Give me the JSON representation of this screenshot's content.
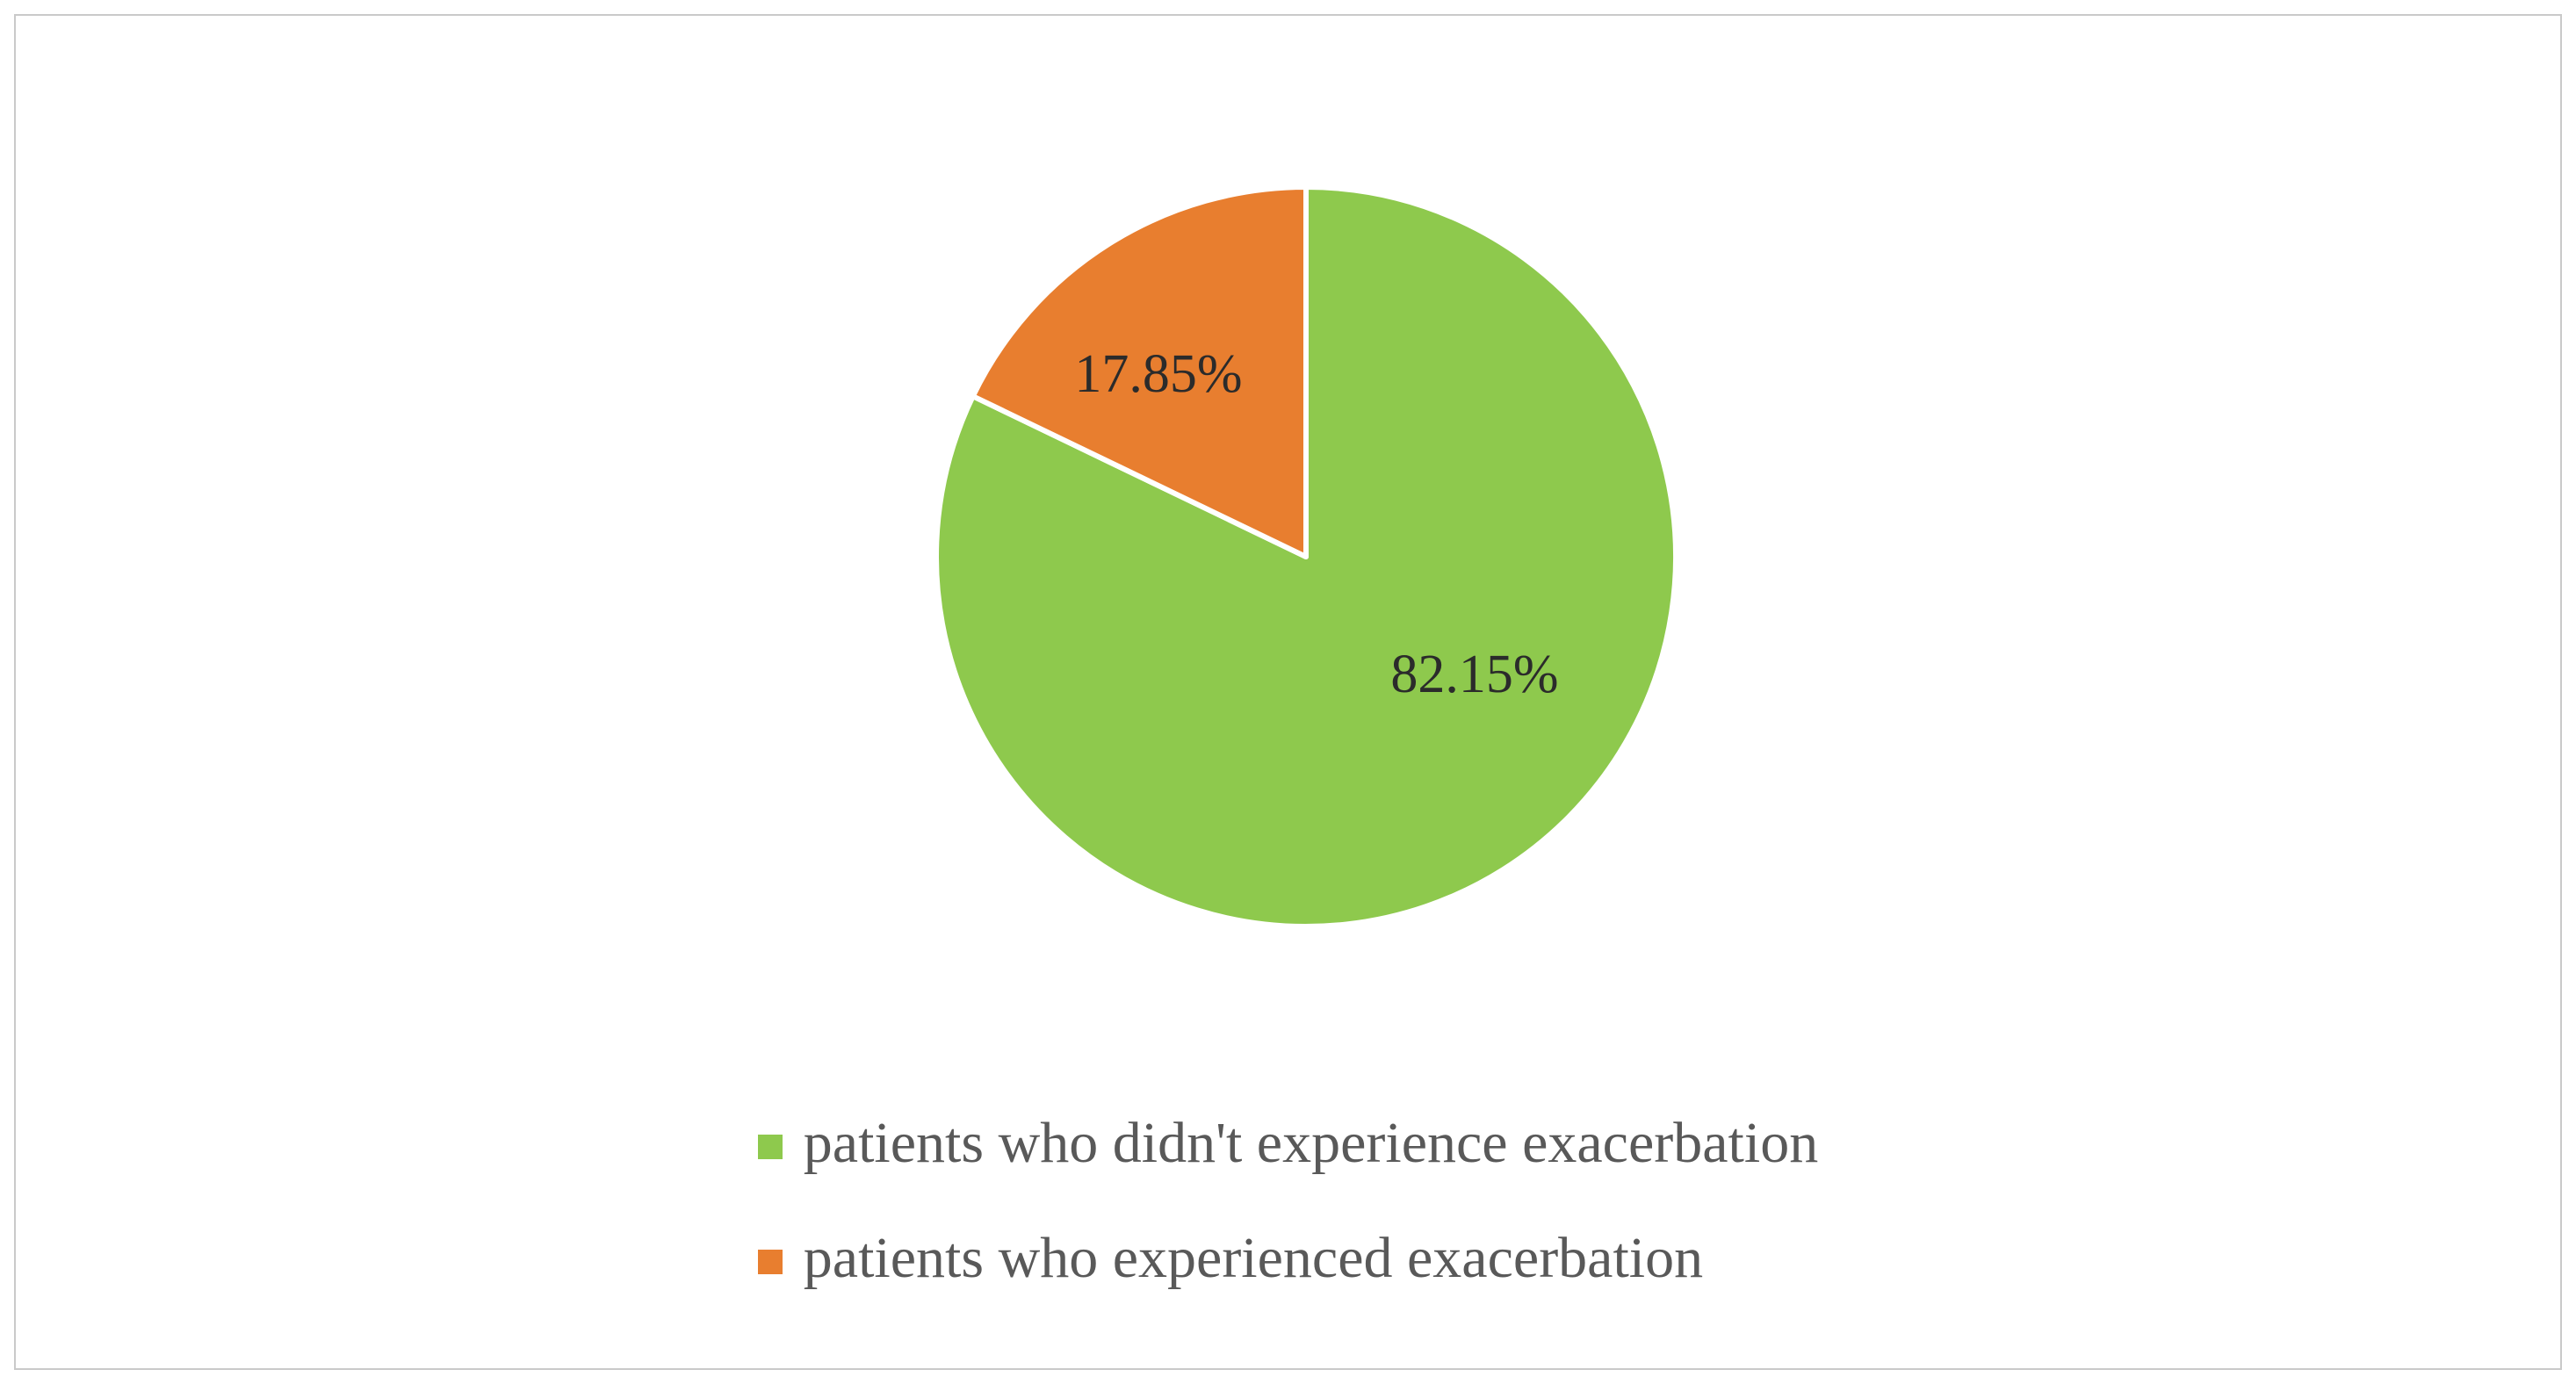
{
  "chart_data": {
    "type": "pie",
    "title": "",
    "start_angle_deg": 0,
    "direction": "clockwise",
    "legend_position": "bottom",
    "slices": [
      {
        "label": "patients who didn't experience exacerbation",
        "value": 82.15,
        "display": "82.15%",
        "color": "#8ec94d"
      },
      {
        "label": "patients who experienced exacerbation",
        "value": 17.85,
        "display": "17.85%",
        "color": "#e87e2f"
      }
    ]
  },
  "colors": {
    "frame_border": "#c9c9c9",
    "legend_text": "#595959",
    "slice_label_text": "#2b2b2b",
    "background": "#ffffff"
  }
}
